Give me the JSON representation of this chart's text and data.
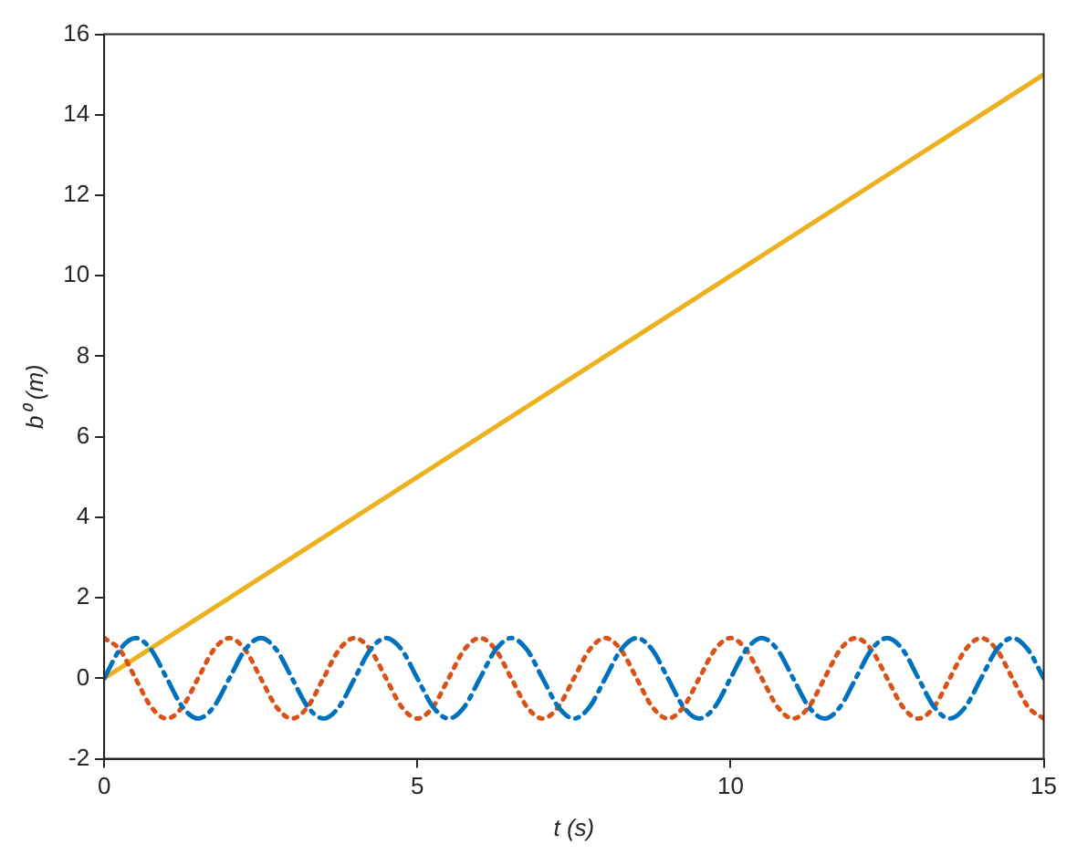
{
  "chart_data": {
    "type": "line",
    "xlabel": "t (s)",
    "ylabel": "b⁰ (m)",
    "x": [
      0,
      0.25,
      0.5,
      0.75,
      1,
      1.25,
      1.5,
      1.75,
      2,
      2.25,
      2.5,
      2.75,
      3,
      3.25,
      3.5,
      3.75,
      4,
      4.25,
      4.5,
      4.75,
      5,
      5.25,
      5.5,
      5.75,
      6,
      6.25,
      6.5,
      6.75,
      7,
      7.25,
      7.5,
      7.75,
      8,
      8.25,
      8.5,
      8.75,
      9,
      9.25,
      9.5,
      9.75,
      10,
      10.25,
      10.5,
      10.75,
      11,
      11.25,
      11.5,
      11.75,
      12,
      12.25,
      12.5,
      12.75,
      13,
      13.25,
      13.5,
      13.75,
      14,
      14.25,
      14.5,
      14.75,
      15
    ],
    "series": [
      {
        "color": "#0072bd",
        "line_style": "dashed",
        "values": [
          0,
          0.71,
          1,
          0.71,
          0,
          -0.71,
          -1,
          -0.71,
          0,
          0.71,
          1,
          0.71,
          0,
          -0.71,
          -1,
          -0.71,
          0,
          0.71,
          1,
          0.71,
          0,
          -0.71,
          -1,
          -0.71,
          0,
          0.71,
          1,
          0.71,
          0,
          -0.71,
          -1,
          -0.71,
          0,
          0.71,
          1,
          0.71,
          0,
          -0.71,
          -1,
          -0.71,
          0,
          0.71,
          1,
          0.71,
          0,
          -0.71,
          -1,
          -0.71,
          0,
          0.71,
          1,
          0.71,
          0,
          -0.71,
          -1,
          -0.71,
          0,
          0.71,
          1,
          0.71,
          0
        ]
      },
      {
        "color": "#d95319",
        "line_style": "dotted",
        "values": [
          1,
          0.71,
          0,
          -0.71,
          -1,
          -0.71,
          0,
          0.71,
          1,
          0.71,
          0,
          -0.71,
          -1,
          -0.71,
          0,
          0.71,
          1,
          0.71,
          0,
          -0.71,
          -1,
          -0.71,
          0,
          0.71,
          1,
          0.71,
          0,
          -0.71,
          -1,
          -0.71,
          0,
          0.71,
          1,
          0.71,
          0,
          -0.71,
          -1,
          -0.71,
          0,
          0.71,
          1,
          0.71,
          0,
          -0.71,
          -1,
          -0.71,
          0,
          0.71,
          1,
          0.71,
          0,
          -0.71,
          -1,
          -0.71,
          0,
          0.71,
          1,
          0.71,
          0,
          -0.71,
          -1
        ]
      },
      {
        "color": "#edb120",
        "line_style": "solid",
        "x": [
          0,
          15
        ],
        "values": [
          0,
          15
        ]
      }
    ],
    "xlim": [
      0,
      15
    ],
    "xticks": [
      0,
      5,
      10,
      15
    ],
    "ylim": [
      -2,
      16
    ],
    "yticks": [
      -2,
      0,
      2,
      4,
      6,
      8,
      10,
      12,
      14,
      16
    ],
    "grid": false,
    "legend": false,
    "marker": "none"
  }
}
